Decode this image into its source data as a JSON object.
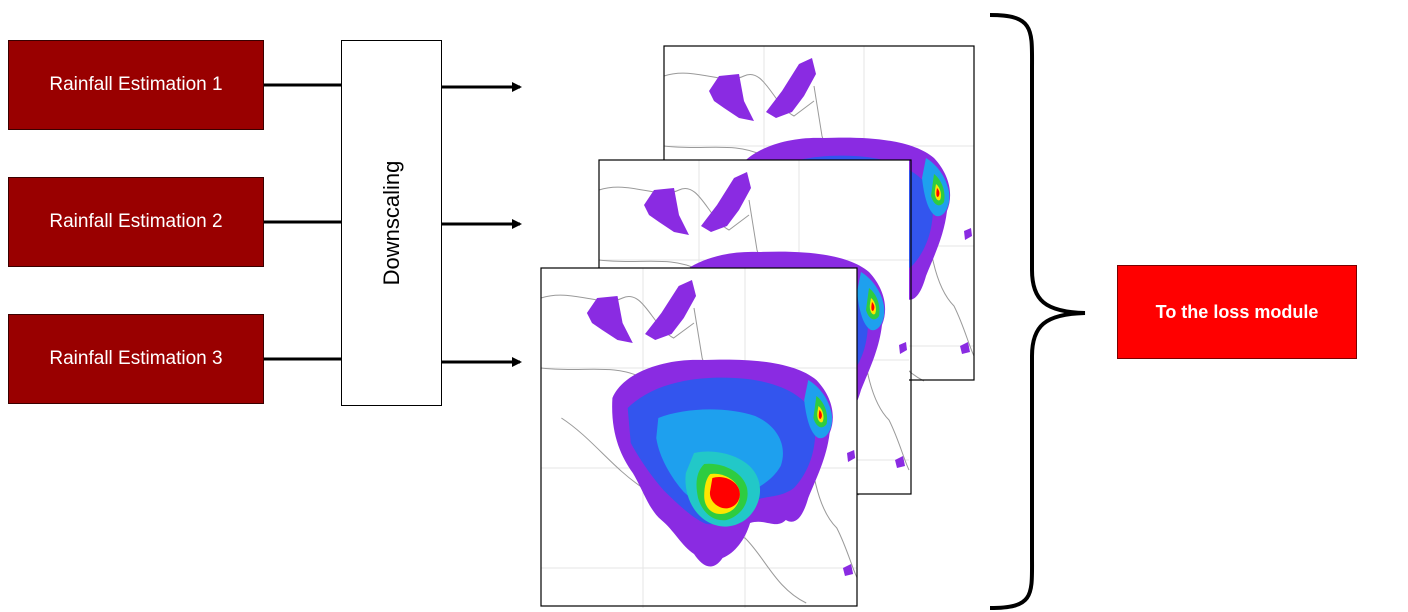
{
  "colors": {
    "estimation_fill": "#990000",
    "loss_fill": "#ff0000",
    "arrow": "#000000"
  },
  "estimations": [
    {
      "label": "Rainfall Estimation 1"
    },
    {
      "label": "Rainfall Estimation 2"
    },
    {
      "label": "Rainfall Estimation 3"
    }
  ],
  "downscaling": {
    "label": "Downscaling"
  },
  "output": {
    "label": "To the loss module"
  }
}
